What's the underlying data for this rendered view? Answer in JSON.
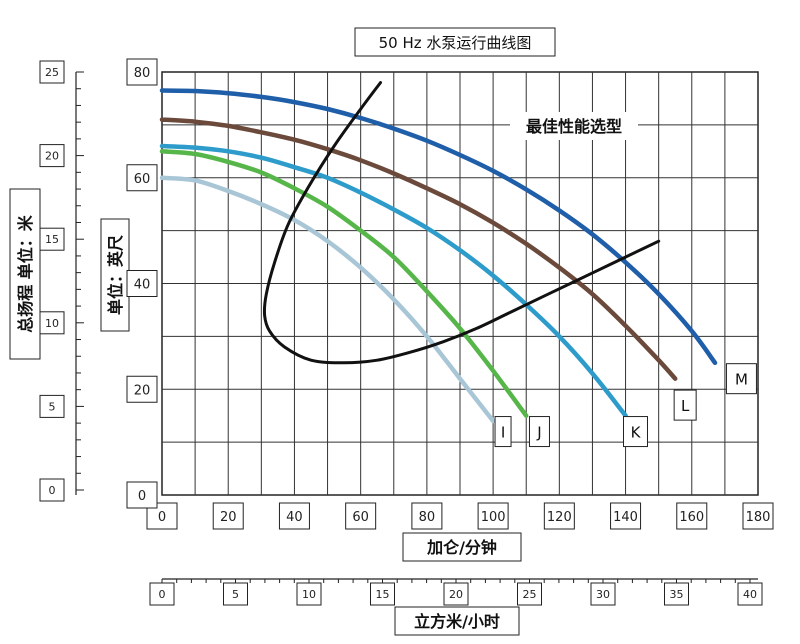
{
  "chart_data": {
    "type": "line",
    "title": "50 Hz 水泵运行曲线图",
    "annotation": "最佳性能选型",
    "xlabel": "加仑/分钟",
    "x2label": "立方米/小时",
    "ylabel": "单位：英尺",
    "y2label": "总扬程 单位：米",
    "xlim": [
      0,
      180
    ],
    "ylim": [
      0,
      80
    ],
    "x_ticks": [
      0,
      20,
      40,
      60,
      80,
      100,
      120,
      140,
      160,
      180
    ],
    "y_ticks": [
      0,
      20,
      40,
      60,
      80
    ],
    "x2_ticks": [
      0,
      5,
      10,
      15,
      20,
      25,
      30,
      35,
      40
    ],
    "y2_ticks": [
      0,
      5,
      10,
      15,
      20,
      25
    ],
    "grid": true,
    "series": [
      {
        "name": "I",
        "color": "#a9c6d6",
        "x": [
          0,
          10,
          20,
          30,
          40,
          50,
          60,
          70,
          80,
          90,
          100
        ],
        "y": [
          60,
          59.5,
          57.5,
          55,
          52,
          48,
          43,
          37,
          30,
          22,
          14
        ]
      },
      {
        "name": "J",
        "color": "#56b649",
        "x": [
          0,
          10,
          20,
          30,
          40,
          50,
          60,
          70,
          80,
          90,
          100,
          110
        ],
        "y": [
          65,
          64.5,
          63,
          61,
          58,
          54.5,
          50,
          45,
          38.5,
          31.5,
          23.5,
          15
        ]
      },
      {
        "name": "K",
        "color": "#2e9ccb",
        "x": [
          0,
          10,
          20,
          30,
          40,
          50,
          60,
          70,
          80,
          90,
          100,
          110,
          120,
          130,
          140
        ],
        "y": [
          66,
          65.7,
          65,
          63.8,
          62,
          60,
          57.2,
          54,
          50.5,
          46.3,
          41.5,
          36,
          30,
          23,
          15
        ]
      },
      {
        "name": "L",
        "color": "#6b4a3c",
        "x": [
          0,
          10,
          20,
          30,
          40,
          50,
          60,
          70,
          80,
          90,
          100,
          110,
          120,
          130,
          140,
          150,
          155
        ],
        "y": [
          71,
          70.6,
          69.8,
          68.6,
          67.2,
          65.4,
          63.3,
          60.8,
          58,
          55,
          51.5,
          47.5,
          43,
          38,
          32,
          25.5,
          22
        ]
      },
      {
        "name": "M",
        "color": "#1f5ea8",
        "x": [
          0,
          10,
          20,
          30,
          40,
          50,
          60,
          70,
          80,
          90,
          100,
          110,
          120,
          130,
          140,
          150,
          160,
          167
        ],
        "y": [
          76.5,
          76.4,
          76,
          75.3,
          74.3,
          73,
          71.3,
          69.3,
          67,
          64.3,
          61.3,
          57.8,
          53.8,
          49.3,
          44,
          38,
          31,
          25
        ]
      },
      {
        "name": "最佳性能选型",
        "color": "#111111",
        "x": [
          66,
          60,
          52,
          44,
          38,
          34,
          31.5,
          31,
          32.5,
          37,
          45,
          55,
          65,
          75,
          85,
          95,
          105,
          115,
          125,
          135,
          145,
          150
        ],
        "y": [
          78,
          73,
          66,
          58,
          51,
          44,
          38,
          34,
          31,
          28,
          25.5,
          25,
          25.5,
          27,
          29,
          31.5,
          34.5,
          37.5,
          40.5,
          43.5,
          46.5,
          48
        ]
      }
    ],
    "curve_labels": [
      "I",
      "J",
      "K",
      "L",
      "M"
    ]
  }
}
